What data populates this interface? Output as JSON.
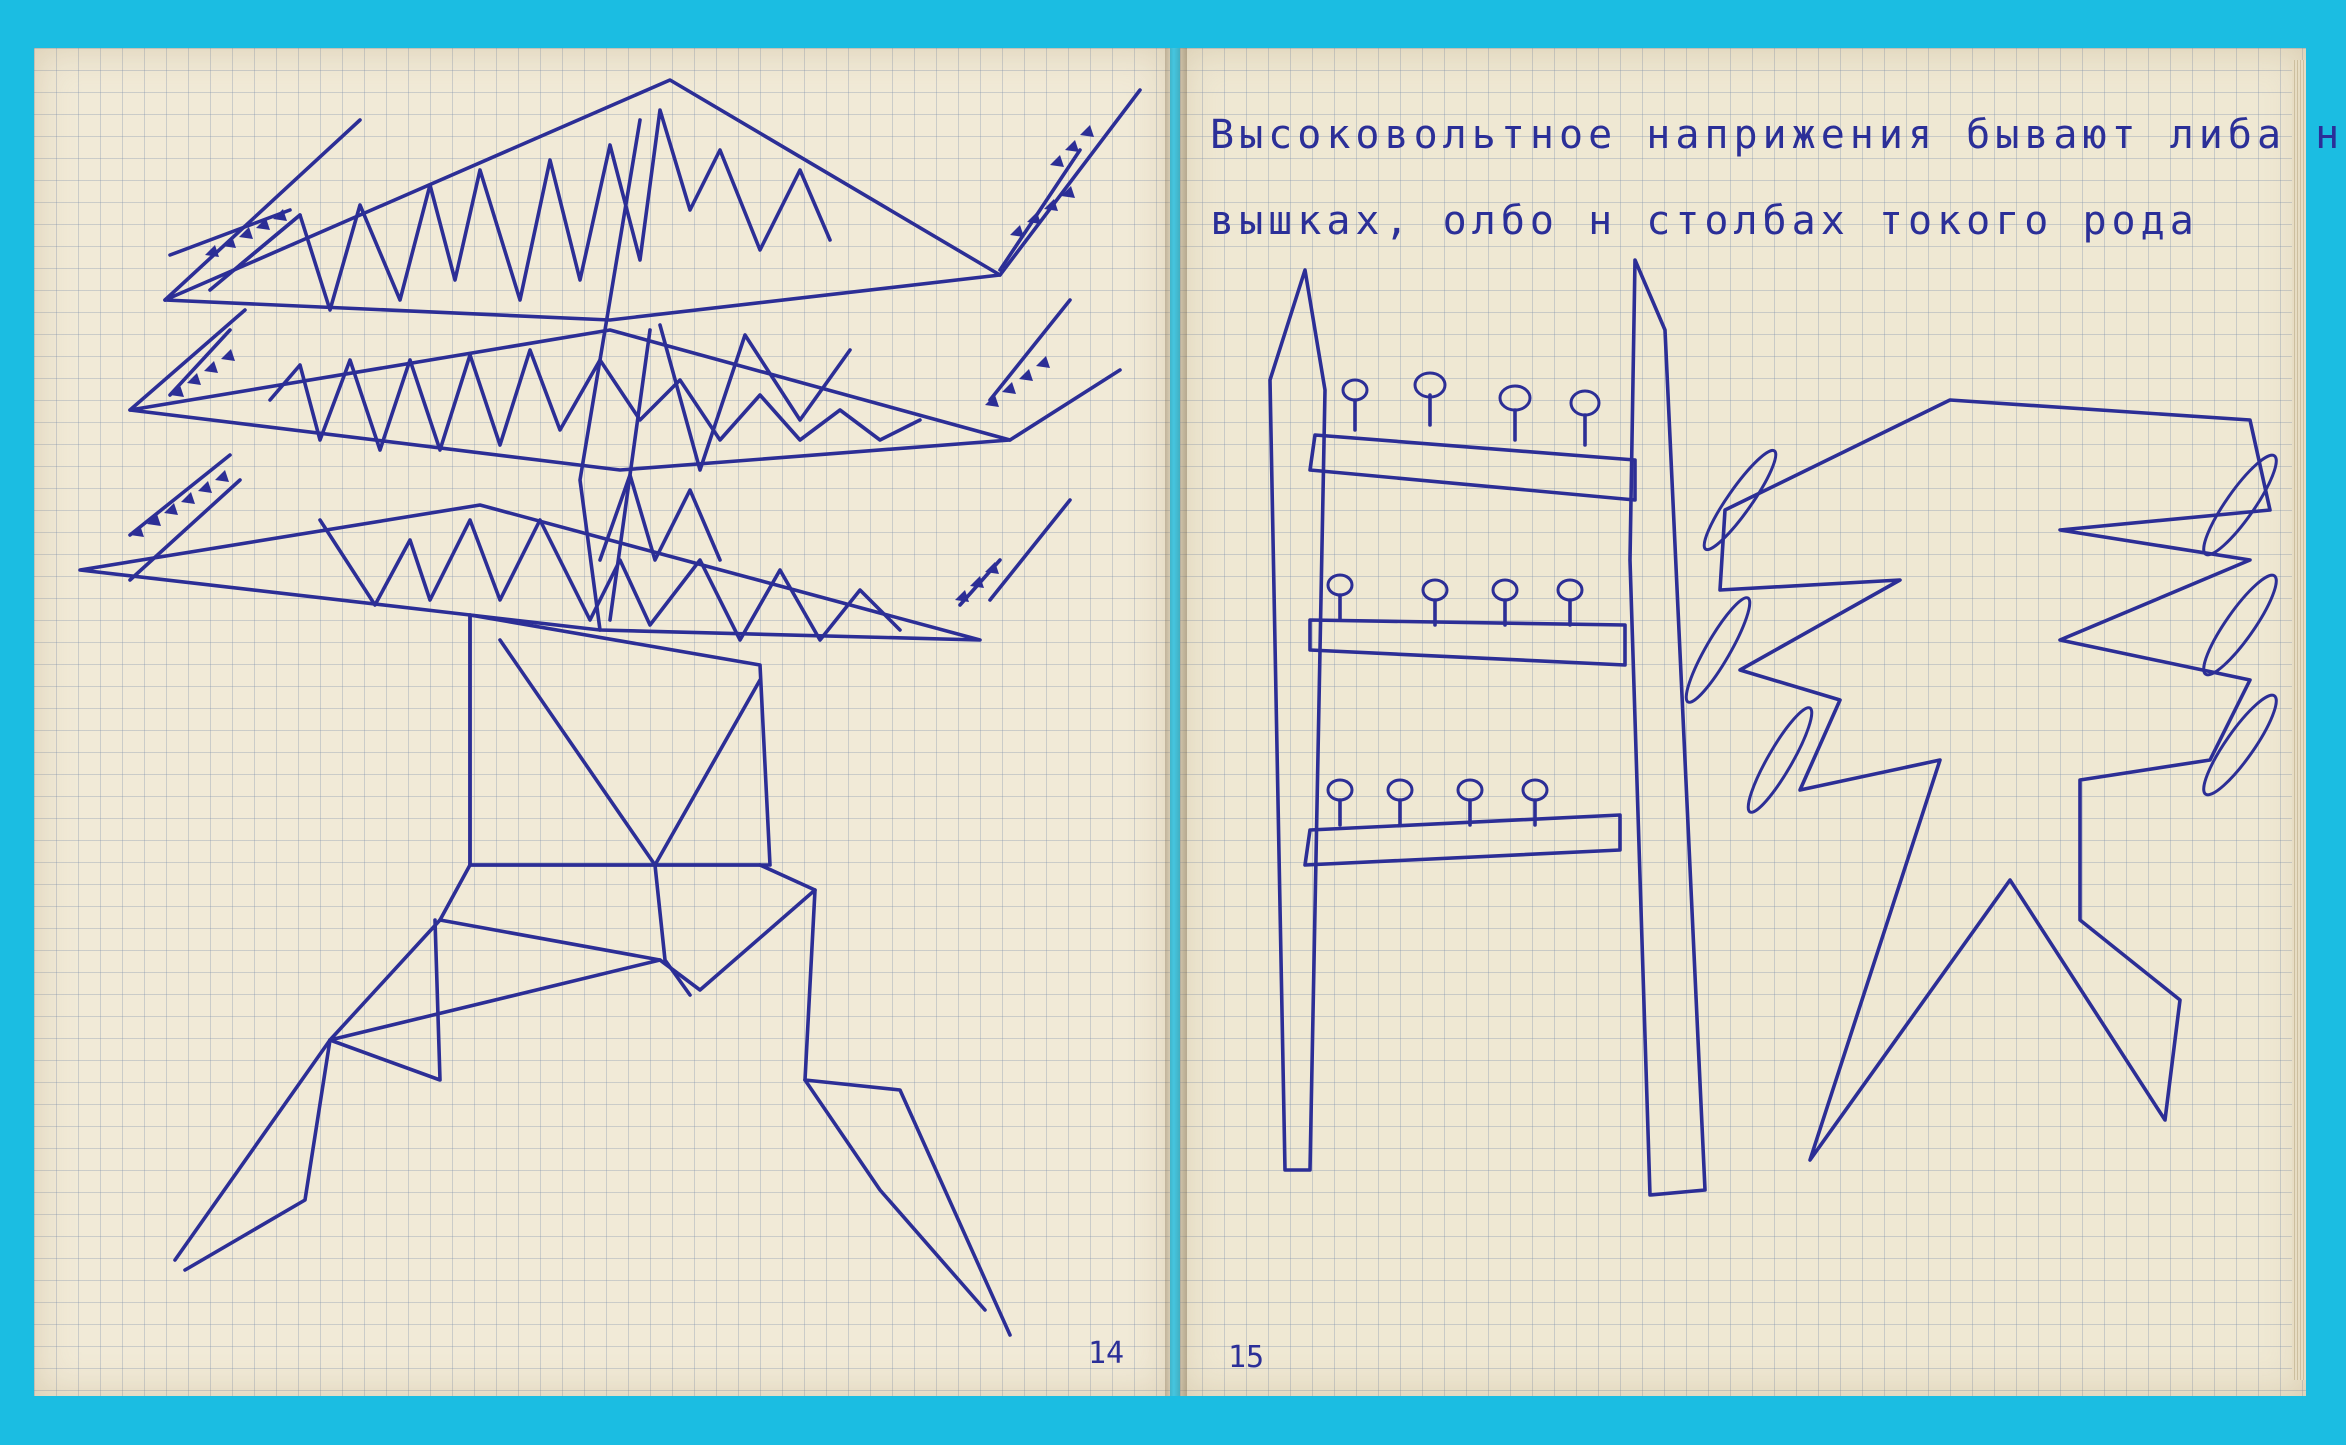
{
  "left_page": {
    "page_number": "14",
    "drawing": "transmission-tower-icon"
  },
  "right_page": {
    "page_number": "15",
    "text_line_1": "Высоковольтное наприжения бывают либа на",
    "text_line_2": "вышках, олбо н столбах токого рода",
    "drawing_1": "power-pole-frame-icon",
    "drawing_2": "pylon-with-insulators-icon"
  },
  "colors": {
    "background": "#1bbde2",
    "paper": "#f1ead7",
    "ink": "#2c2e96"
  }
}
